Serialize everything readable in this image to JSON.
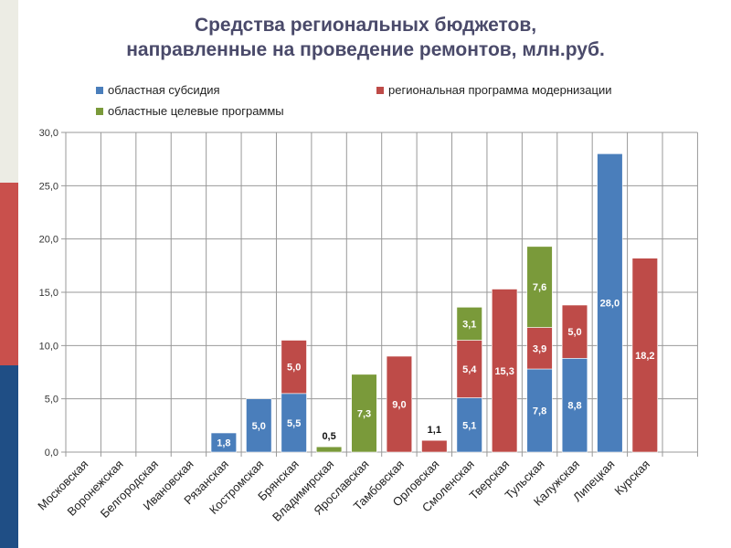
{
  "chart_data": {
    "type": "bar",
    "stacked": true,
    "title": "Средства региональных бюджетов, направленные на проведение ремонтов, млн.руб.",
    "title_lines": [
      "Средства региональных бюджетов,",
      "направленные на проведение ремонтов, млн.руб."
    ],
    "categories": [
      "Московская",
      "Воронежская",
      "Белгородская",
      "Ивановская",
      "Рязанская",
      "Костромская",
      "Брянская",
      "Владимирская",
      "Ярославская",
      "Тамбовская",
      "Орловская",
      "Смоленская",
      "Тверская",
      "Тульская",
      "Калужская",
      "Липецкая",
      "Курская"
    ],
    "series": [
      {
        "name": "областная субсидия",
        "color": "#4a7ebb",
        "values": [
          0,
          0,
          0,
          0,
          1.8,
          5.0,
          5.5,
          0,
          0,
          0,
          0,
          5.1,
          0,
          7.8,
          8.8,
          28.0,
          0
        ]
      },
      {
        "name": "региональная программа модернизации",
        "color": "#be4b48",
        "values": [
          0,
          0,
          0,
          0,
          0,
          0,
          5.0,
          0,
          0,
          9.0,
          1.1,
          5.4,
          15.3,
          3.9,
          5.0,
          0,
          18.2
        ]
      },
      {
        "name": "областные целевые программы",
        "color": "#7a9a3a",
        "values": [
          0,
          0,
          0,
          0,
          0,
          0,
          0,
          0.5,
          7.3,
          0,
          0,
          3.1,
          0,
          7.6,
          0,
          0,
          0
        ]
      }
    ],
    "yticks": [
      "0,0",
      "5,0",
      "10,0",
      "15,0",
      "20,0",
      "25,0",
      "30,0"
    ],
    "ylim": [
      0,
      30
    ],
    "grid": true,
    "legend_position": "top"
  }
}
